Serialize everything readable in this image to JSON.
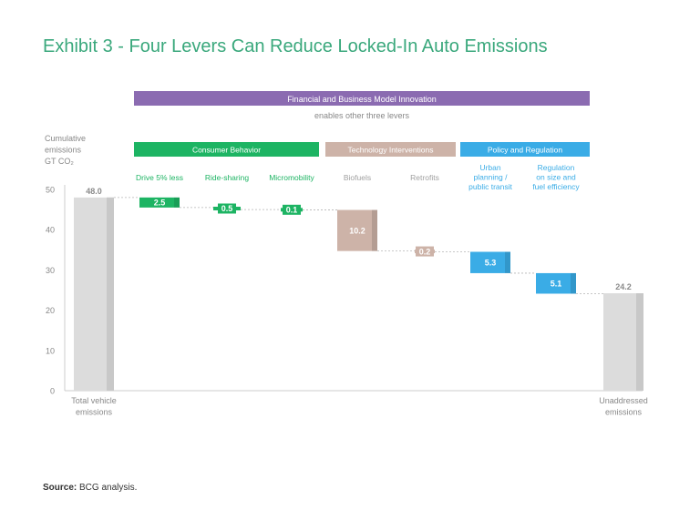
{
  "title": "Exhibit 3 - Four Levers Can Reduce Locked-In Auto Emissions",
  "source_label": "Source:",
  "source_text": " BCG analysis.",
  "banner": {
    "label": "Financial and Business Model Innovation",
    "sublabel": "enables other three levers",
    "color": "#8b6bb1"
  },
  "groups": [
    {
      "label": "Consumer Behavior",
      "color": "#1db463"
    },
    {
      "label": "Technology Interventions",
      "color": "#cdb3a8"
    },
    {
      "label": "Policy and Regulation",
      "color": "#3aace6"
    }
  ],
  "y_axis_label": [
    "Cumulative",
    "emissions",
    "GT CO₂"
  ],
  "chart_data": {
    "type": "bar",
    "subtype": "waterfall",
    "ylim": [
      0,
      50
    ],
    "yticks": [
      0,
      10,
      20,
      30,
      40,
      50
    ],
    "grid": false,
    "bars": [
      {
        "category": [
          "Total vehicle",
          "emissions"
        ],
        "kind": "total",
        "value": 48.0,
        "label": "48.0",
        "color": "#dcdcdc",
        "labelColor": "#8a8a8a"
      },
      {
        "category": [
          "Drive 5% less"
        ],
        "kind": "delta",
        "value": 2.5,
        "label": "2.5",
        "color": "#1db463",
        "labelColor": "#ffffff",
        "catColor": "#1db463"
      },
      {
        "category": [
          "Ride-sharing"
        ],
        "kind": "delta",
        "value": 0.5,
        "label": "0.5",
        "color": "#1db463",
        "labelColor": "#ffffff",
        "catColor": "#1db463"
      },
      {
        "category": [
          "Micromobility"
        ],
        "kind": "delta",
        "value": 0.1,
        "label": "0.1",
        "color": "#1db463",
        "labelColor": "#ffffff",
        "catColor": "#1db463"
      },
      {
        "category": [
          "Biofuels"
        ],
        "kind": "delta",
        "value": 10.2,
        "label": "10.2",
        "color": "#cdb3a8",
        "labelColor": "#ffffff",
        "catColor": "#a0a0a0"
      },
      {
        "category": [
          "Retrofits"
        ],
        "kind": "delta",
        "value": 0.2,
        "label": "0.2",
        "color": "#cdb3a8",
        "labelColor": "#ffffff",
        "catColor": "#a0a0a0"
      },
      {
        "category": [
          "Urban",
          "planning /",
          "public transit"
        ],
        "kind": "delta",
        "value": 5.3,
        "label": "5.3",
        "color": "#3aace6",
        "labelColor": "#ffffff",
        "catColor": "#3aace6"
      },
      {
        "category": [
          "Regulation",
          "on size and",
          "fuel efficiency"
        ],
        "kind": "delta",
        "value": 5.1,
        "label": "5.1",
        "color": "#3aace6",
        "labelColor": "#ffffff",
        "catColor": "#3aace6"
      },
      {
        "category": [
          "Unaddressed",
          "emissions"
        ],
        "kind": "total",
        "value": 24.2,
        "label": "24.2",
        "color": "#dcdcdc",
        "labelColor": "#8a8a8a"
      }
    ]
  }
}
